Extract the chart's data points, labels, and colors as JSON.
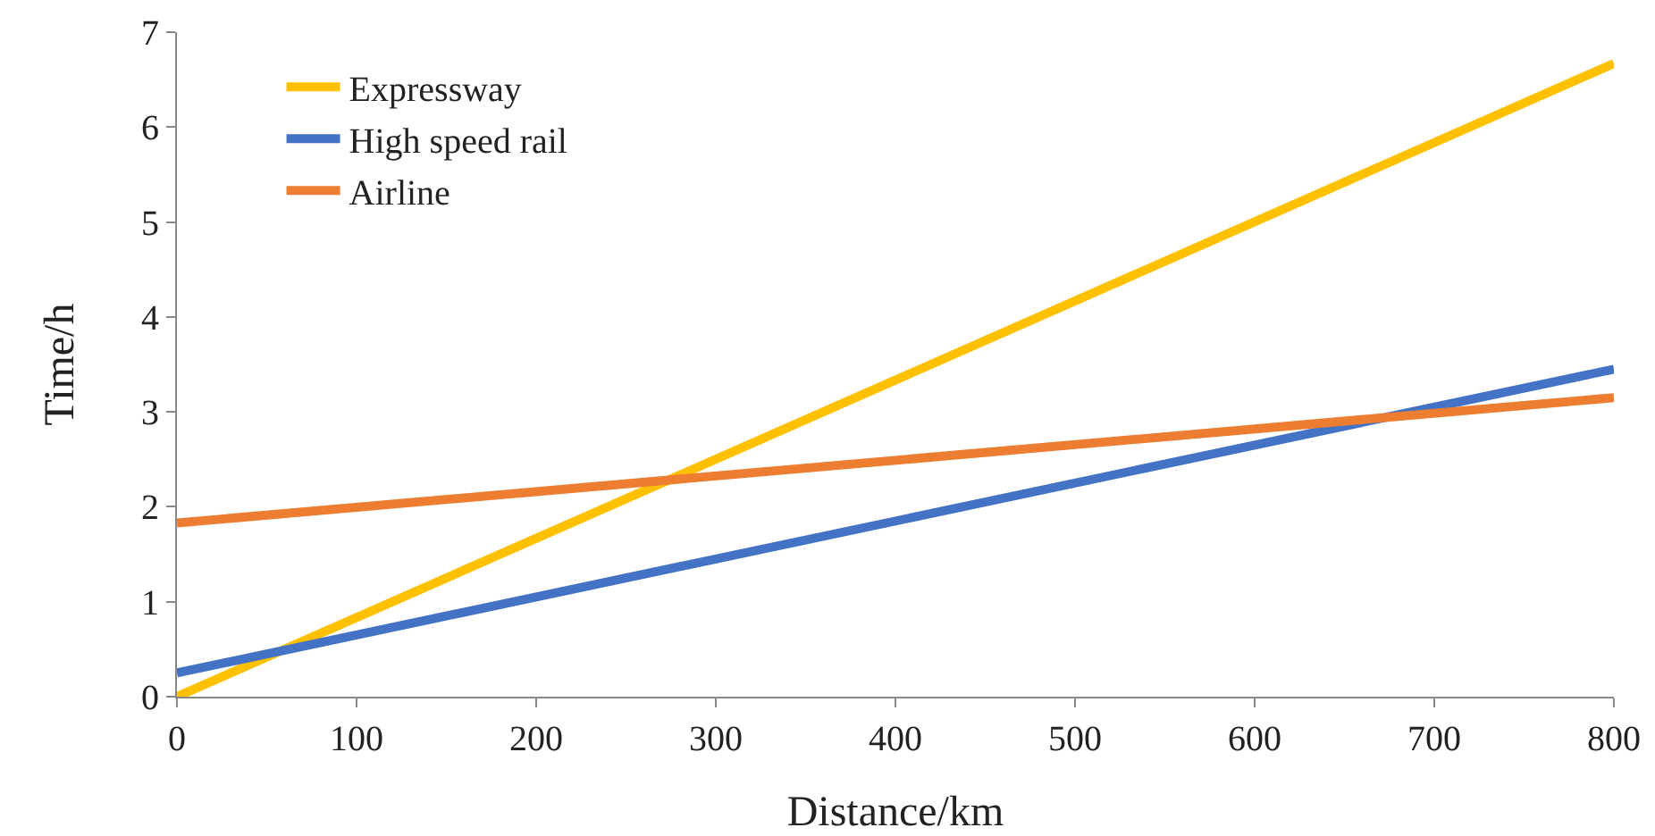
{
  "chart_data": {
    "type": "line",
    "xlabel": "Distance/km",
    "ylabel": "Time/h",
    "x": [
      0,
      800
    ],
    "series": [
      {
        "name": "Expressway",
        "color": "#ffc000",
        "values": [
          0,
          6.67
        ]
      },
      {
        "name": "High speed rail",
        "color": "#4472c4",
        "values": [
          0.25,
          3.45
        ]
      },
      {
        "name": "Airline",
        "color": "#ed7d31",
        "values": [
          1.83,
          3.15
        ]
      }
    ],
    "xlim": [
      0,
      800
    ],
    "xticks": [
      0,
      100,
      200,
      300,
      400,
      500,
      600,
      700,
      800
    ],
    "ylim": [
      0,
      7
    ],
    "yticks": [
      0,
      1,
      2,
      3,
      4,
      5,
      6,
      7
    ],
    "grid": false,
    "legend": "top left",
    "marker": "none",
    "line_style": "solid"
  }
}
